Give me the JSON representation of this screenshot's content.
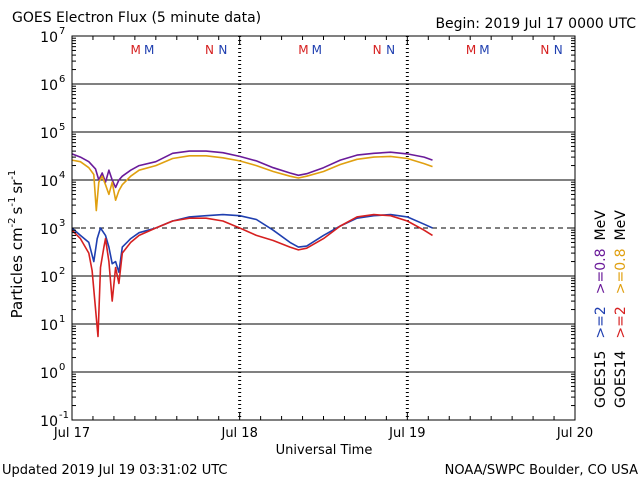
{
  "chart_data": {
    "type": "line",
    "title": "GOES Electron Flux (5 minute data)",
    "begin_label": "Begin: 2019 Jul 17 0000 UTC",
    "xlabel": "Universal Time",
    "ylabel_parts": [
      "Particles cm",
      "-2",
      "s",
      "-1",
      "sr",
      "-1"
    ],
    "x_unit": "days since 2019 Jul 17 0000 UTC",
    "xlim": [
      0,
      3
    ],
    "ylim_log10": [
      -1,
      7
    ],
    "y_scale": "log",
    "x_ticks": [
      {
        "x": 0,
        "label": "Jul 17"
      },
      {
        "x": 1,
        "label": "Jul 18"
      },
      {
        "x": 2,
        "label": "Jul 19"
      },
      {
        "x": 3,
        "label": "Jul 20"
      }
    ],
    "y_ticks": [
      {
        "exp": 7,
        "base": "10",
        "sup": "7"
      },
      {
        "exp": 6,
        "base": "10",
        "sup": "6"
      },
      {
        "exp": 5,
        "base": "10",
        "sup": "5"
      },
      {
        "exp": 4,
        "base": "10",
        "sup": "4"
      },
      {
        "exp": 3,
        "base": "10",
        "sup": "3"
      },
      {
        "exp": 2,
        "base": "10",
        "sup": "2"
      },
      {
        "exp": 1,
        "base": "10",
        "sup": "1"
      },
      {
        "exp": 0,
        "base": "10",
        "sup": "0"
      },
      {
        "exp": -1,
        "base": "10",
        "sup": "-1"
      }
    ],
    "threshold": {
      "value": 1000,
      "style": "dashed"
    },
    "markers": [
      {
        "x": 0.38,
        "label": "M",
        "color": "#d62020"
      },
      {
        "x": 0.46,
        "label": "M",
        "color": "#1f3fb0"
      },
      {
        "x": 0.82,
        "label": "N",
        "color": "#d62020"
      },
      {
        "x": 0.9,
        "label": "N",
        "color": "#1f3fb0"
      },
      {
        "x": 1.38,
        "label": "M",
        "color": "#d62020"
      },
      {
        "x": 1.46,
        "label": "M",
        "color": "#1f3fb0"
      },
      {
        "x": 1.82,
        "label": "N",
        "color": "#d62020"
      },
      {
        "x": 1.9,
        "label": "N",
        "color": "#1f3fb0"
      },
      {
        "x": 2.38,
        "label": "M",
        "color": "#d62020"
      },
      {
        "x": 2.46,
        "label": "M",
        "color": "#1f3fb0"
      },
      {
        "x": 2.82,
        "label": "N",
        "color": "#d62020"
      },
      {
        "x": 2.9,
        "label": "N",
        "color": "#1f3fb0"
      }
    ],
    "series": [
      {
        "name": "GOES15 >=0.8 MeV",
        "color": "#6a1b9a",
        "points": [
          [
            0,
            35000
          ],
          [
            0.05,
            30000
          ],
          [
            0.1,
            24000
          ],
          [
            0.14,
            17000
          ],
          [
            0.16,
            10000
          ],
          [
            0.18,
            14000
          ],
          [
            0.2,
            9000
          ],
          [
            0.22,
            16000
          ],
          [
            0.24,
            10000
          ],
          [
            0.26,
            7000
          ],
          [
            0.28,
            10000
          ],
          [
            0.3,
            12000
          ],
          [
            0.35,
            16000
          ],
          [
            0.4,
            20000
          ],
          [
            0.5,
            24000
          ],
          [
            0.6,
            36000
          ],
          [
            0.7,
            40000
          ],
          [
            0.8,
            40000
          ],
          [
            0.9,
            37000
          ],
          [
            1.0,
            31000
          ],
          [
            1.1,
            25000
          ],
          [
            1.2,
            18000
          ],
          [
            1.3,
            14000
          ],
          [
            1.35,
            12500
          ],
          [
            1.4,
            13500
          ],
          [
            1.5,
            18000
          ],
          [
            1.6,
            26000
          ],
          [
            1.7,
            33000
          ],
          [
            1.8,
            36000
          ],
          [
            1.9,
            38000
          ],
          [
            2.0,
            35000
          ],
          [
            2.1,
            30000
          ],
          [
            2.15,
            26000
          ]
        ]
      },
      {
        "name": "GOES14 >=0.8 MeV",
        "color": "#e0a010",
        "points": [
          [
            0,
            26000
          ],
          [
            0.05,
            24000
          ],
          [
            0.1,
            18000
          ],
          [
            0.13,
            13000
          ],
          [
            0.145,
            2300
          ],
          [
            0.16,
            9000
          ],
          [
            0.18,
            12000
          ],
          [
            0.2,
            8000
          ],
          [
            0.22,
            5000
          ],
          [
            0.24,
            9000
          ],
          [
            0.26,
            3800
          ],
          [
            0.28,
            6000
          ],
          [
            0.3,
            8000
          ],
          [
            0.35,
            12000
          ],
          [
            0.4,
            16000
          ],
          [
            0.5,
            20000
          ],
          [
            0.6,
            28000
          ],
          [
            0.7,
            32000
          ],
          [
            0.8,
            32000
          ],
          [
            0.9,
            29000
          ],
          [
            1.0,
            25000
          ],
          [
            1.1,
            20000
          ],
          [
            1.2,
            15000
          ],
          [
            1.3,
            12000
          ],
          [
            1.35,
            11000
          ],
          [
            1.4,
            12000
          ],
          [
            1.5,
            15000
          ],
          [
            1.6,
            21000
          ],
          [
            1.7,
            27000
          ],
          [
            1.8,
            30000
          ],
          [
            1.9,
            31000
          ],
          [
            2.0,
            28000
          ],
          [
            2.1,
            22000
          ],
          [
            2.15,
            19000
          ]
        ]
      },
      {
        "name": "GOES15 >=2 MeV",
        "color": "#1f3fb0",
        "points": [
          [
            0,
            1000
          ],
          [
            0.05,
            700
          ],
          [
            0.1,
            500
          ],
          [
            0.13,
            200
          ],
          [
            0.15,
            600
          ],
          [
            0.17,
            1000
          ],
          [
            0.2,
            700
          ],
          [
            0.22,
            400
          ],
          [
            0.24,
            180
          ],
          [
            0.26,
            200
          ],
          [
            0.28,
            120
          ],
          [
            0.3,
            400
          ],
          [
            0.35,
            600
          ],
          [
            0.4,
            800
          ],
          [
            0.5,
            1000
          ],
          [
            0.6,
            1400
          ],
          [
            0.7,
            1700
          ],
          [
            0.8,
            1800
          ],
          [
            0.9,
            1900
          ],
          [
            1.0,
            1800
          ],
          [
            1.1,
            1500
          ],
          [
            1.2,
            900
          ],
          [
            1.3,
            500
          ],
          [
            1.35,
            400
          ],
          [
            1.4,
            420
          ],
          [
            1.5,
            700
          ],
          [
            1.6,
            1100
          ],
          [
            1.7,
            1600
          ],
          [
            1.8,
            1800
          ],
          [
            1.9,
            1900
          ],
          [
            2.0,
            1700
          ],
          [
            2.1,
            1200
          ],
          [
            2.15,
            1000
          ]
        ]
      },
      {
        "name": "GOES14 >=2 MeV",
        "color": "#d62020",
        "points": [
          [
            0,
            900
          ],
          [
            0.05,
            600
          ],
          [
            0.1,
            300
          ],
          [
            0.12,
            130
          ],
          [
            0.155,
            5.5
          ],
          [
            0.17,
            150
          ],
          [
            0.19,
            400
          ],
          [
            0.2,
            600
          ],
          [
            0.22,
            200
          ],
          [
            0.24,
            30
          ],
          [
            0.26,
            150
          ],
          [
            0.28,
            70
          ],
          [
            0.3,
            300
          ],
          [
            0.35,
            500
          ],
          [
            0.4,
            700
          ],
          [
            0.5,
            1000
          ],
          [
            0.6,
            1400
          ],
          [
            0.7,
            1600
          ],
          [
            0.8,
            1600
          ],
          [
            0.9,
            1400
          ],
          [
            1.0,
            1000
          ],
          [
            1.1,
            700
          ],
          [
            1.2,
            550
          ],
          [
            1.3,
            400
          ],
          [
            1.35,
            350
          ],
          [
            1.4,
            380
          ],
          [
            1.5,
            600
          ],
          [
            1.6,
            1100
          ],
          [
            1.7,
            1700
          ],
          [
            1.8,
            1900
          ],
          [
            1.9,
            1800
          ],
          [
            2.0,
            1400
          ],
          [
            2.1,
            900
          ],
          [
            2.15,
            700
          ]
        ]
      }
    ],
    "legend": {
      "placement": "right-vertical",
      "columns": [
        {
          "satellite": "GOES15",
          "items": [
            {
              "label": ">=2",
              "color": "#1f3fb0"
            },
            {
              "label": ">=0.8",
              "color": "#6a1b9a"
            }
          ],
          "unit": "MeV"
        },
        {
          "satellite": "GOES14",
          "items": [
            {
              "label": ">=2",
              "color": "#d62020"
            },
            {
              "label": ">=0.8",
              "color": "#e0a010"
            }
          ],
          "unit": "MeV"
        }
      ]
    }
  },
  "footer": {
    "updated": "Updated 2019 Jul 19 03:31:02 UTC",
    "source": "NOAA/SWPC Boulder, CO USA"
  }
}
